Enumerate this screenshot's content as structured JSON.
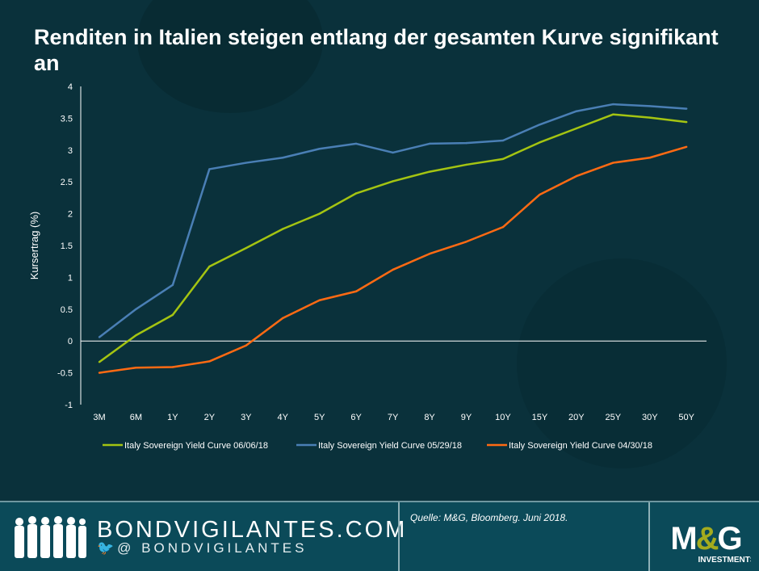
{
  "title": "Renditen in Italien steigen entlang der gesamten Kurve signifikant an",
  "footer": {
    "site": "BONDVIGILANTES.COM",
    "handle": "@ BONDVIGILANTES",
    "source": "Quelle: M&G, Bloomberg. Juni 2018.",
    "logo_text": "M&G",
    "logo_sub": "INVESTMENTS"
  },
  "colors": {
    "background": "#0a313b",
    "footer": "#0b4a59",
    "green": "#a4c412",
    "blue": "#4a7fb5",
    "orange": "#ff6a13"
  },
  "chart_data": {
    "type": "line",
    "title": "Renditen in Italien steigen entlang der gesamten Kurve signifikant an",
    "xlabel": "",
    "ylabel": "Kursertrag (%)",
    "ylim": [
      -1,
      4
    ],
    "yticks": [
      "-1",
      "-0.5",
      "0",
      "0.5",
      "1",
      "1.5",
      "2",
      "2.5",
      "3",
      "3.5",
      "4"
    ],
    "grid": false,
    "legend": "bottom",
    "categories": [
      "3M",
      "6M",
      "1Y",
      "2Y",
      "3Y",
      "4Y",
      "5Y",
      "6Y",
      "7Y",
      "8Y",
      "9Y",
      "10Y",
      "15Y",
      "20Y",
      "25Y",
      "30Y",
      "50Y"
    ],
    "series": [
      {
        "name": "Italy Sovereign Yield Curve 06/06/18",
        "color": "#a4c412",
        "values": [
          -0.33,
          0.09,
          0.41,
          1.17,
          1.46,
          1.76,
          2.0,
          2.32,
          2.51,
          2.66,
          2.77,
          2.86,
          3.12,
          3.34,
          3.56,
          3.51,
          3.44
        ]
      },
      {
        "name": "Italy Sovereign Yield Curve 05/29/18",
        "color": "#4a7fb5",
        "values": [
          0.06,
          0.5,
          0.88,
          2.7,
          2.8,
          2.88,
          3.02,
          3.1,
          2.96,
          3.1,
          3.11,
          3.15,
          3.4,
          3.61,
          3.72,
          3.69,
          3.65
        ]
      },
      {
        "name": "Italy Sovereign Yield Curve 04/30/18",
        "color": "#ff6a13",
        "values": [
          -0.5,
          -0.42,
          -0.41,
          -0.32,
          -0.07,
          0.36,
          0.64,
          0.78,
          1.12,
          1.37,
          1.56,
          1.79,
          2.3,
          2.59,
          2.8,
          2.88,
          3.05
        ]
      }
    ]
  }
}
